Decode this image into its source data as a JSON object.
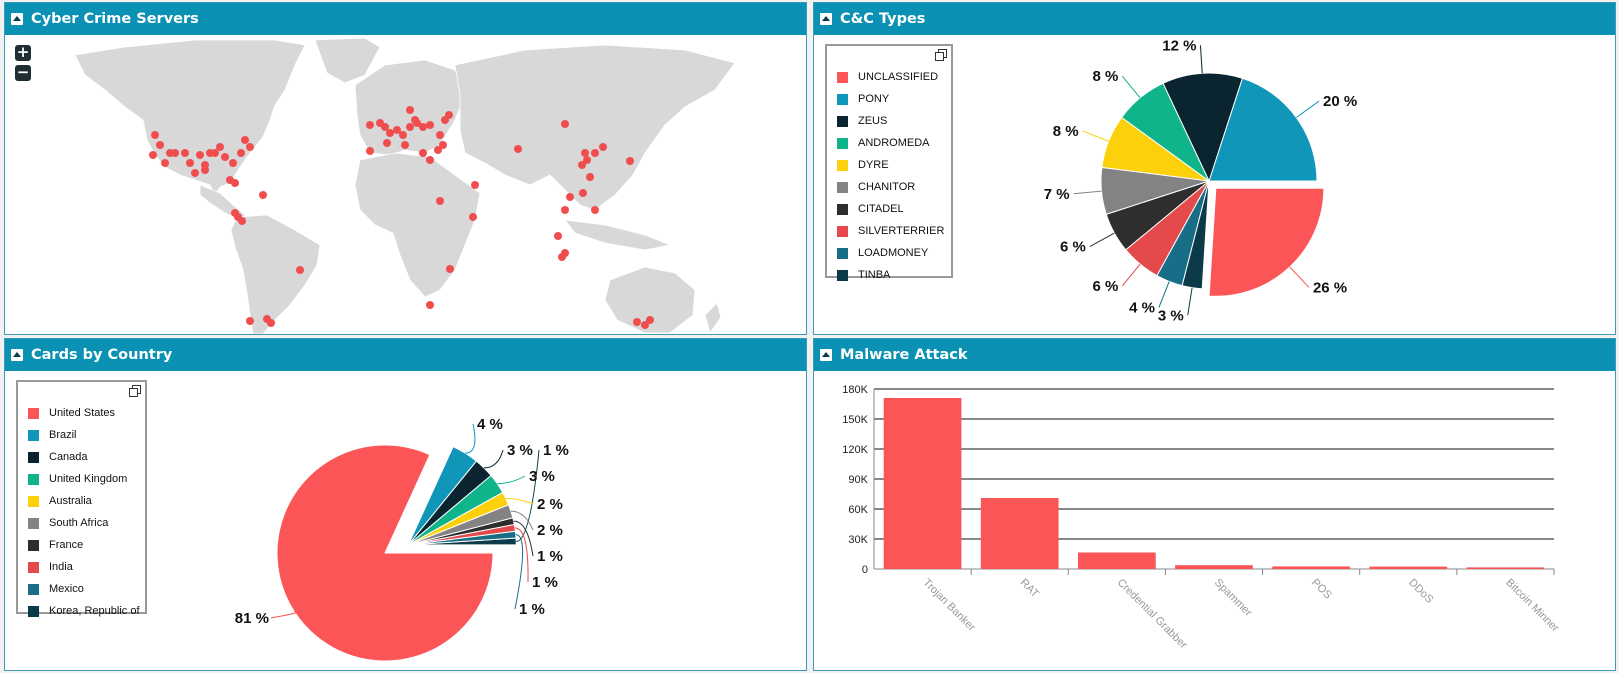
{
  "panels": {
    "servers": {
      "title": "Cyber Crime Servers",
      "zoom_in": "+",
      "zoom_out": "−"
    },
    "cc_types": {
      "title": "C&C Types"
    },
    "cards": {
      "title": "Cards by Country"
    },
    "malware": {
      "title": "Malware Attack"
    }
  },
  "colors": {
    "header": "#0a91b3",
    "marker": "#f04e4e",
    "land": "#d8d8d8"
  },
  "chart_data": [
    {
      "type": "pie",
      "title": "C&C Types",
      "labels": [
        "UNCLASSIFIED",
        "PONY",
        "ZEUS",
        "ANDROMEDA",
        "DYRE",
        "CHANITOR",
        "CITADEL",
        "SILVERTERRIER",
        "LOADMONEY",
        "TINBA"
      ],
      "values": [
        26,
        20,
        12,
        8,
        8,
        7,
        6,
        6,
        4,
        3
      ],
      "value_labels": [
        "26 %",
        "20 %",
        "12 %",
        "8 %",
        "8 %",
        "7 %",
        "6 %",
        "6 %",
        "4 %",
        "3 %"
      ],
      "colors": [
        "#fb5558",
        "#0f96b8",
        "#0b2530",
        "#0fb48a",
        "#fcd10b",
        "#838383",
        "#2e2e2e",
        "#e44a4c",
        "#176e86",
        "#0b3a48"
      ],
      "sliced": "UNCLASSIFIED",
      "legend": "left"
    },
    {
      "type": "pie",
      "title": "Cards by Country",
      "labels": [
        "United States",
        "Brazil",
        "Canada",
        "United Kingdom",
        "Australia",
        "South Africa",
        "France",
        "India",
        "Mexico",
        "Korea, Republic of"
      ],
      "values": [
        81,
        4,
        3,
        3,
        2,
        2,
        1,
        1,
        1,
        1
      ],
      "value_labels": [
        "81 %",
        "4 %",
        "3 %",
        "3 %",
        "2 %",
        "2 %",
        "1 %",
        "1 %",
        "1 %",
        "1 %"
      ],
      "colors": [
        "#fb5558",
        "#0f96b8",
        "#0b2530",
        "#0fb48a",
        "#fcd10b",
        "#838383",
        "#2e2e2e",
        "#e44a4c",
        "#176e86",
        "#0b3a48"
      ],
      "sliced": "others",
      "legend": "left"
    },
    {
      "type": "bar",
      "title": "Malware Attack",
      "categories": [
        "Trojan Banker",
        "RAT",
        "Credential Grabber",
        "Spammer",
        "POS",
        "DDoS",
        "Bitcoin Minner"
      ],
      "values": [
        171000,
        71000,
        16500,
        3800,
        2600,
        2400,
        1600
      ],
      "ylim": [
        0,
        180000
      ],
      "yticks": [
        "0",
        "30K",
        "60K",
        "90K",
        "120K",
        "150K",
        "180K"
      ],
      "color": "#fb5558",
      "grid": true
    }
  ]
}
